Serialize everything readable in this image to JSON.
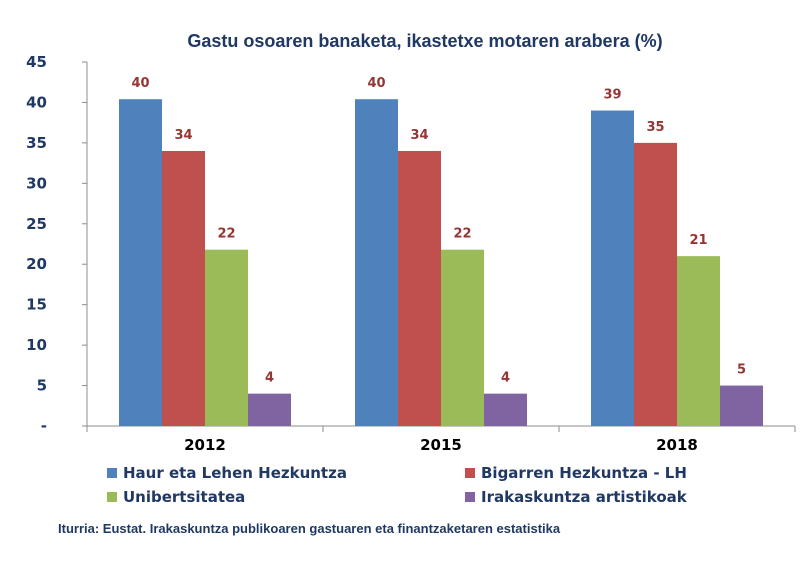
{
  "chart_data": {
    "type": "bar",
    "title": "Gastu osoaren banaketa, ikastetxe motaren arabera (%)",
    "categories": [
      "2012",
      "2015",
      "2018"
    ],
    "series": [
      {
        "name": "Haur eta Lehen Hezkuntza",
        "color": "#4f81bd",
        "values": [
          40.4,
          40.4,
          39.0
        ],
        "labels": [
          "40",
          "40",
          "39"
        ]
      },
      {
        "name": "Bigarren Hezkuntza - LH",
        "color": "#c0504d",
        "values": [
          34.0,
          34.0,
          35.0
        ],
        "labels": [
          "34",
          "34",
          "35"
        ]
      },
      {
        "name": "Unibertsitatea",
        "color": "#9bbb59",
        "values": [
          21.8,
          21.8,
          21.0
        ],
        "labels": [
          "22",
          "22",
          "21"
        ]
      },
      {
        "name": "Irakaskuntza artistikoak",
        "color": "#8064a2",
        "values": [
          4.0,
          4.0,
          5.0
        ],
        "labels": [
          "4",
          "4",
          "5"
        ]
      }
    ],
    "ylim": [
      0,
      45
    ],
    "yticks": [
      0,
      5,
      10,
      15,
      20,
      25,
      30,
      35,
      40,
      45
    ],
    "ytick_labels": [
      "-",
      "5",
      "10",
      "15",
      "20",
      "25",
      "30",
      "35",
      "40",
      "45"
    ],
    "xlabel": "",
    "ylabel": "",
    "legend_position": "bottom",
    "grid": false
  },
  "source": "Iturria: Eustat. Irakaskuntza publikoaren gastuaren eta finantzaketaren estatistika"
}
